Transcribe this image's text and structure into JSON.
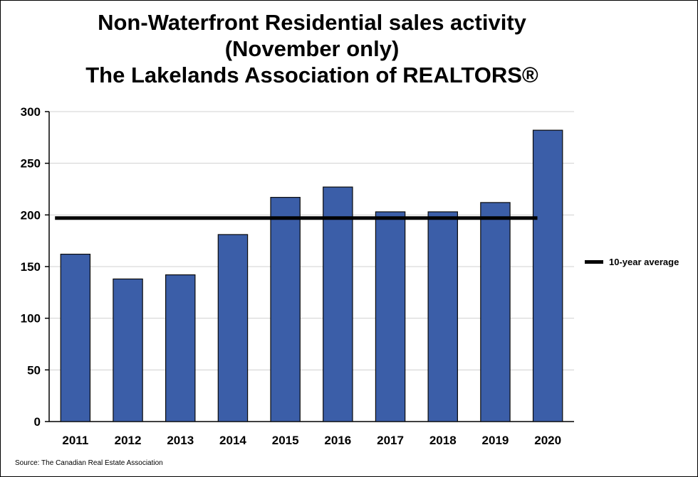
{
  "colors": {
    "bar": "#3b5ea8",
    "bar_edge": "#0a0a0a",
    "average_line": "#000000",
    "grid": "#d0d0d0"
  },
  "chart_data": {
    "type": "bar",
    "title_lines": [
      "Non-Waterfront Residential sales activity",
      "(November only)",
      "The Lakelands Association of REALTORS®"
    ],
    "categories": [
      "2011",
      "2012",
      "2013",
      "2014",
      "2015",
      "2016",
      "2017",
      "2018",
      "2019",
      "2020"
    ],
    "series": [
      {
        "name": "Sales",
        "values": [
          162,
          138,
          142,
          181,
          217,
          227,
          203,
          203,
          212,
          282
        ]
      }
    ],
    "reference_line": {
      "name": "10-year average",
      "value": 197
    },
    "legend": {
      "label": "10-year average",
      "position": "right"
    },
    "yticks": [
      0,
      50,
      100,
      150,
      200,
      250,
      300
    ],
    "ylim": [
      0,
      300
    ],
    "xlabel": "",
    "ylabel": "",
    "grid": true,
    "source": "Source: The Canadian Real Estate Association"
  }
}
